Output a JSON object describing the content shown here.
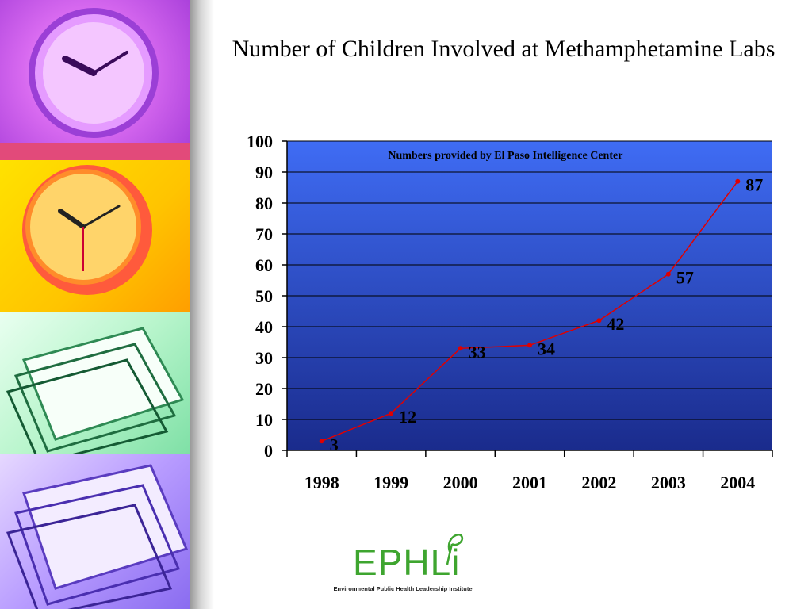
{
  "slide": {
    "title": "Number of Children Involved at Methamphetamine Labs"
  },
  "chart_data": {
    "type": "line",
    "title": "Number of Children Involved at Methamphetamine Labs",
    "annotation": "Numbers provided by El Paso Intelligence Center",
    "categories": [
      "1998",
      "1999",
      "2000",
      "2001",
      "2002",
      "2003",
      "2004"
    ],
    "series": [
      {
        "values": [
          3,
          12,
          33,
          34,
          42,
          57,
          87
        ],
        "color": "#e00000"
      }
    ],
    "data_labels": [
      "3",
      "12",
      "33",
      "34",
      "42",
      "57",
      "87"
    ],
    "ylim": [
      0,
      100
    ],
    "yticks": [
      0,
      10,
      20,
      30,
      40,
      50,
      60,
      70,
      80,
      90,
      100
    ],
    "ytick_labels": [
      "0",
      "10",
      "20",
      "30",
      "40",
      "50",
      "60",
      "70",
      "80",
      "90",
      "100"
    ],
    "xlabel": "",
    "ylabel": "",
    "grid": true,
    "plot_background": [
      "#3f6cf4",
      "#1a2b8c"
    ]
  },
  "logo": {
    "wordmark": "EPHLi",
    "tagline": "Environmental Public Health Leadership Institute",
    "color": "#3ea52f"
  }
}
